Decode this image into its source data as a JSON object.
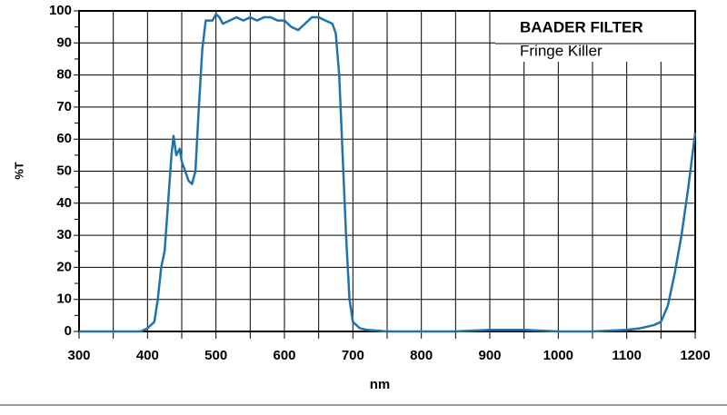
{
  "chart_data": {
    "type": "line",
    "annotation_title": "BAADER FILTER",
    "annotation_subtitle": "Fringe Killer",
    "xlabel": "nm",
    "ylabel": "%T",
    "x": [
      300,
      390,
      400,
      410,
      415,
      420,
      425,
      430,
      435,
      438,
      442,
      447,
      450,
      455,
      460,
      465,
      470,
      475,
      480,
      485,
      490,
      495,
      500,
      505,
      510,
      520,
      530,
      540,
      550,
      560,
      570,
      580,
      590,
      600,
      610,
      620,
      630,
      640,
      650,
      660,
      670,
      675,
      680,
      685,
      690,
      695,
      700,
      710,
      720,
      750,
      800,
      850,
      900,
      950,
      1000,
      1050,
      1100,
      1120,
      1140,
      1150,
      1160,
      1170,
      1180,
      1190,
      1200
    ],
    "series": [
      {
        "name": "%T",
        "color": "#1f73ad",
        "values": [
          0,
          0,
          1,
          3,
          10,
          20,
          25,
          40,
          55,
          61,
          55,
          57,
          53,
          50,
          47,
          46,
          50,
          70,
          88,
          97,
          97,
          97,
          99,
          98,
          96,
          97,
          98,
          97,
          98,
          97,
          98,
          98,
          97,
          97,
          95,
          94,
          96,
          98,
          98,
          97,
          96,
          93,
          80,
          55,
          30,
          10,
          3,
          1,
          0.5,
          0,
          0,
          0,
          0.5,
          0.5,
          0,
          0,
          0.5,
          1,
          2,
          3,
          8,
          18,
          30,
          45,
          62
        ]
      }
    ],
    "xlim": [
      300,
      1200
    ],
    "ylim": [
      0,
      100
    ],
    "xticks": [
      300,
      400,
      500,
      600,
      700,
      800,
      900,
      1000,
      1100,
      1200
    ],
    "xminor_ticks": [
      350,
      450,
      550,
      650,
      750,
      850,
      950,
      1050,
      1150
    ],
    "yticks": [
      0,
      10,
      20,
      30,
      40,
      50,
      60,
      70,
      80,
      90,
      100
    ],
    "yminor_ticks": [
      5,
      15,
      25,
      35,
      45,
      55,
      65,
      75,
      85,
      95
    ],
    "grid": true
  }
}
